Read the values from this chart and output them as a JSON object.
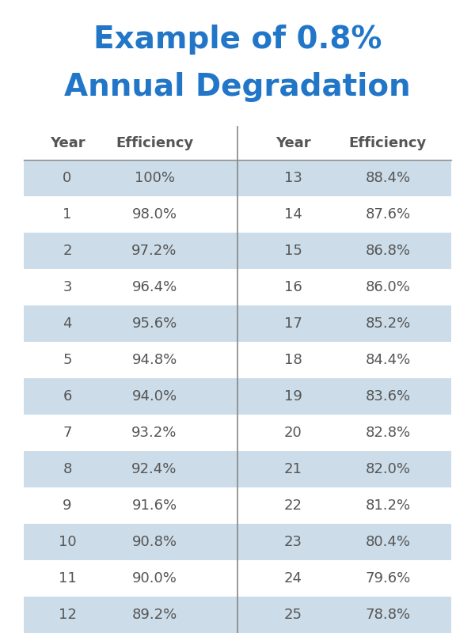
{
  "title_line1": "Example of 0.8%",
  "title_line2": "Annual Degradation",
  "title_color": "#2176C7",
  "background_color": "#ffffff",
  "header_text_color": "#555555",
  "cell_text_color": "#555555",
  "row_bg_shaded": "#ccdce8",
  "row_bg_white": "#ffffff",
  "divider_color": "#888888",
  "col_headers": [
    "Year",
    "Efficiency",
    "Year",
    "Efficiency"
  ],
  "left_years": [
    0,
    1,
    2,
    3,
    4,
    5,
    6,
    7,
    8,
    9,
    10,
    11,
    12
  ],
  "left_eff": [
    "100%",
    "98.0%",
    "97.2%",
    "96.4%",
    "95.6%",
    "94.8%",
    "94.0%",
    "93.2%",
    "92.4%",
    "91.6%",
    "90.8%",
    "90.0%",
    "89.2%"
  ],
  "right_years": [
    13,
    14,
    15,
    16,
    17,
    18,
    19,
    20,
    21,
    22,
    23,
    24,
    25
  ],
  "right_eff": [
    "88.4%",
    "87.6%",
    "86.8%",
    "86.0%",
    "85.2%",
    "84.4%",
    "83.6%",
    "82.8%",
    "82.0%",
    "81.2%",
    "80.4%",
    "79.6%",
    "78.8%"
  ],
  "shaded_rows": [
    0,
    2,
    4,
    6,
    8,
    10,
    12
  ],
  "title_fontsize": 28,
  "header_fontsize": 13,
  "cell_fontsize": 13,
  "figsize": [
    6.0,
    8.0
  ],
  "dpi": 100
}
